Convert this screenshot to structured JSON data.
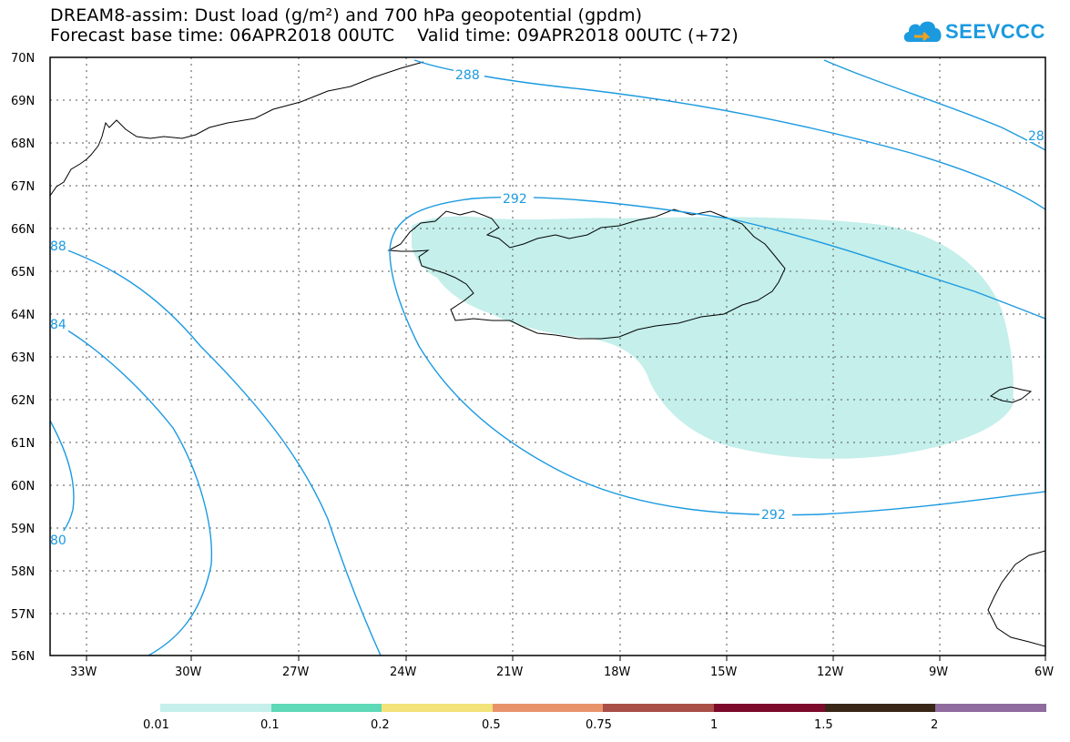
{
  "title": {
    "line1": "DREAM8-assim: Dust load (g/m²) and 700 hPa geopotential (gpdm)",
    "line2": "Forecast base time: 06APR2018 00UTC    Valid time: 09APR2018 00UTC (+72)"
  },
  "logo": {
    "text": "SEEVCCC",
    "icon": "cloud-icon",
    "color": "#1b9ae0"
  },
  "axes": {
    "lat_labels": [
      "70N",
      "69N",
      "68N",
      "67N",
      "66N",
      "65N",
      "64N",
      "63N",
      "62N",
      "61N",
      "60N",
      "59N",
      "58N",
      "57N",
      "56N"
    ],
    "lon_labels": [
      "33W",
      "30W",
      "27W",
      "24W",
      "21W",
      "18W",
      "15W",
      "12W",
      "9W",
      "6W"
    ]
  },
  "contours": {
    "color": "#1b9ae0",
    "labels": [
      "288",
      "28",
      "292",
      "292",
      "88",
      "84",
      "80"
    ]
  },
  "dust": {
    "color": "#c4efeb"
  },
  "colorbar": {
    "colors": [
      "#c4efeb",
      "#5fd9b8",
      "#f2e37a",
      "#e8936c",
      "#a94f47",
      "#7c0a2a",
      "#3a2616",
      "#8f6b9e"
    ],
    "labels": [
      "0.01",
      "0.1",
      "0.2",
      "0.5",
      "0.75",
      "1",
      "1.5",
      "2"
    ]
  }
}
